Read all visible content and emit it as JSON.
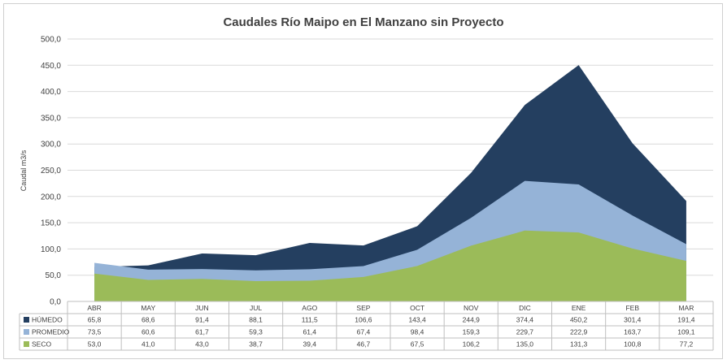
{
  "chart_data": {
    "type": "area",
    "title": "Caudales Río Maipo en El Manzano sin Proyecto",
    "ylabel": "Caudal m3/s",
    "ylim": [
      0,
      500
    ],
    "yticks": [
      "0,0",
      "50,0",
      "100,0",
      "150,0",
      "200,0",
      "250,0",
      "300,0",
      "350,0",
      "400,0",
      "450,0",
      "500,0"
    ],
    "categories": [
      "ABR",
      "MAY",
      "JUN",
      "JUL",
      "AGO",
      "SEP",
      "OCT",
      "NOV",
      "DIC",
      "ENE",
      "FEB",
      "MAR"
    ],
    "grid": true,
    "legend": "data-table",
    "series": [
      {
        "name": "HÚMEDO",
        "color": "#243f60",
        "values": [
          65.8,
          68.6,
          91.4,
          88.1,
          111.5,
          106.6,
          143.4,
          244.9,
          374.4,
          450.2,
          301.4,
          191.4
        ],
        "labels": [
          "65,8",
          "68,6",
          "91,4",
          "88,1",
          "111,5",
          "106,6",
          "143,4",
          "244,9",
          "374,4",
          "450,2",
          "301,4",
          "191,4"
        ]
      },
      {
        "name": "PROMEDIO",
        "color": "#95b3d7",
        "values": [
          73.5,
          60.6,
          61.7,
          59.3,
          61.4,
          67.4,
          98.4,
          159.3,
          229.7,
          222.9,
          163.7,
          109.1
        ],
        "labels": [
          "73,5",
          "60,6",
          "61,7",
          "59,3",
          "61,4",
          "67,4",
          "98,4",
          "159,3",
          "229,7",
          "222,9",
          "163,7",
          "109,1"
        ]
      },
      {
        "name": "SECO",
        "color": "#9bbb59",
        "values": [
          53.0,
          41.0,
          43.0,
          38.7,
          39.4,
          46.7,
          67.5,
          106.2,
          135.0,
          131.3,
          100.8,
          77.2
        ],
        "labels": [
          "53,0",
          "41,0",
          "43,0",
          "38,7",
          "39,4",
          "46,7",
          "67,5",
          "106,2",
          "135,0",
          "131,3",
          "100,8",
          "77,2"
        ]
      }
    ]
  }
}
